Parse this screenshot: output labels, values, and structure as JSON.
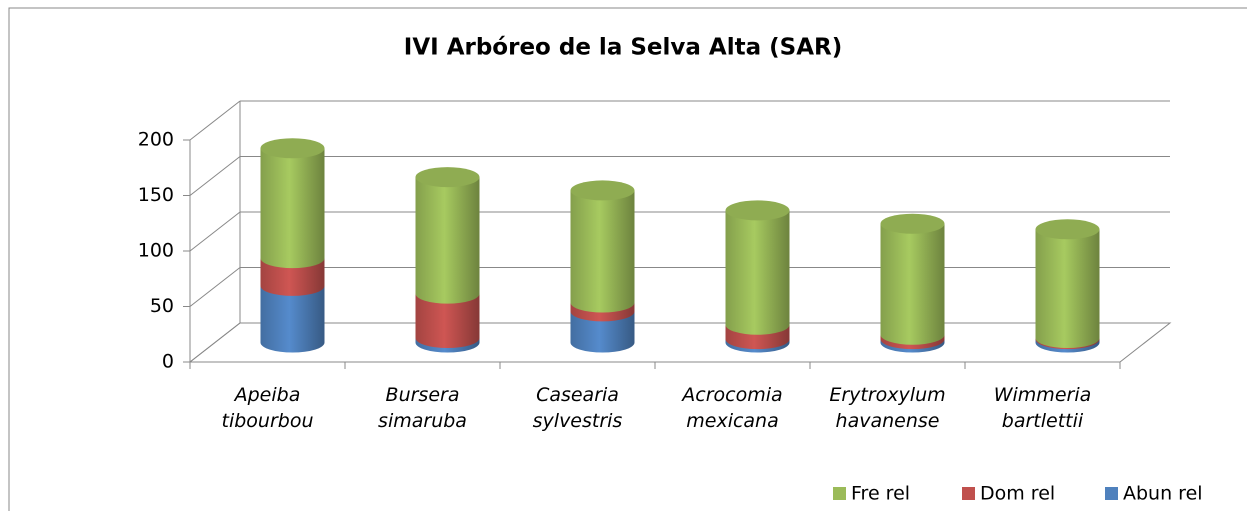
{
  "chart_data": {
    "type": "bar3d_cylinder_stacked",
    "title": "IVI Arbóreo de la Selva Alta (SAR)",
    "categories": [
      "Apeiba tibourbou",
      "Bursera simaruba",
      "Casearia sylvestris",
      "Acrocomia mexicana",
      "Erytroxylum havanense",
      "Wimmeria bartlettii"
    ],
    "series": [
      {
        "name": "Fre rel",
        "color": "#9bbb59",
        "values": [
          99,
          105,
          101,
          103,
          100,
          98
        ]
      },
      {
        "name": "Dom rel",
        "color": "#c0504d",
        "values": [
          25,
          40,
          8,
          13,
          4,
          1
        ]
      },
      {
        "name": "Abun rel",
        "color": "#4f81bd",
        "values": [
          51,
          4,
          28,
          3,
          3,
          3
        ]
      }
    ],
    "ylim": [
      0,
      200
    ],
    "yticks": [
      0,
      50,
      100,
      150,
      200
    ],
    "grid": true,
    "legend": "bottom-right"
  }
}
